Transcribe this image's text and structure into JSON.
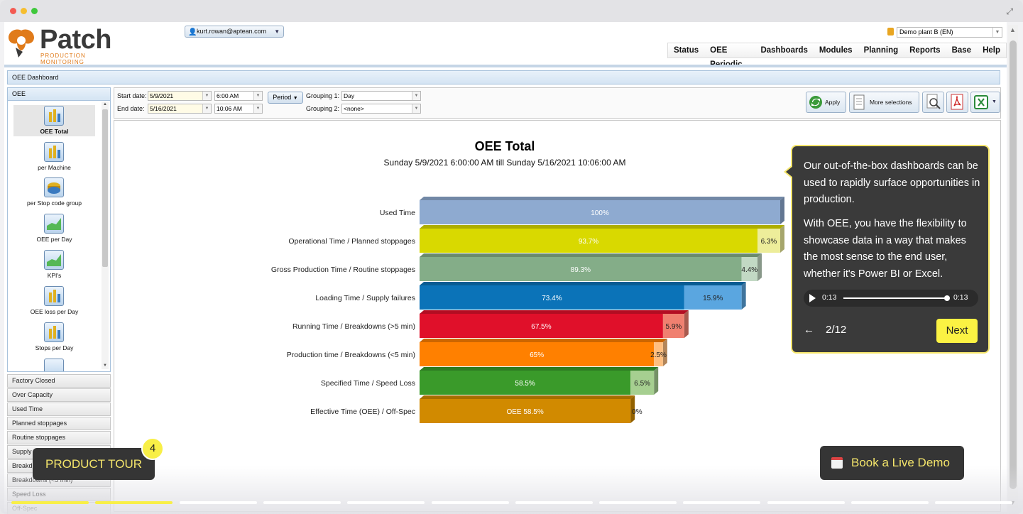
{
  "app": {
    "logo_text": "Patch",
    "logo_subtitle": "PRODUCTION MONITORING",
    "user": "kurt.rowan@aptean.com",
    "plant": "Demo plant B (EN)",
    "menu": [
      "Status",
      "OEE Periodic",
      "Dashboards",
      "Modules",
      "Planning",
      "Reports",
      "Base",
      "Help"
    ],
    "dashboard_tab": "OEE Dashboard"
  },
  "sidebar": {
    "header": "OEE",
    "items": [
      {
        "label": "OEE Total",
        "selected": true,
        "icon": "bar-chart-icon"
      },
      {
        "label": "per Machine",
        "icon": "bar-chart-icon"
      },
      {
        "label": "per Stop code group",
        "icon": "pie-chart-icon"
      },
      {
        "label": "OEE per Day",
        "icon": "area-chart-icon"
      },
      {
        "label": "KPI's",
        "icon": "area-chart-icon"
      },
      {
        "label": "OEE loss per Day",
        "icon": "bar-chart-icon"
      },
      {
        "label": "Stops per Day",
        "icon": "bar-chart-icon"
      }
    ],
    "sections": [
      "Factory Closed",
      "Over Capacity",
      "Used Time",
      "Planned stoppages",
      "Routine stoppages",
      "Supply",
      "Breakd",
      "Breakdowns (<5 min)",
      "Speed Loss",
      "Off-Spec"
    ]
  },
  "filters": {
    "start_label": "Start date:",
    "start_date": "5/9/2021",
    "start_time": "6:00 AM",
    "end_label": "End date:",
    "end_date": "5/16/2021",
    "end_time": "10:06 AM",
    "period_label": "Period",
    "grouping1_label": "Grouping 1:",
    "grouping1_value": "Day",
    "grouping2_label": "Grouping 2:",
    "grouping2_value": "<none>",
    "apply_label": "Apply",
    "more_label": "More selections"
  },
  "chart_data": {
    "type": "bar",
    "orientation": "horizontal",
    "stacked": true,
    "title": "OEE Total",
    "subtitle": "Sunday 5/9/2021 6:00:00 AM till Sunday 5/16/2021 10:06:00 AM",
    "xlim": [
      0,
      100
    ],
    "categories": [
      "Used Time",
      "Operational Time / Planned stoppages",
      "Gross Production Time / Routine stoppages",
      "Loading Time / Supply failures",
      "Running Time / Breakdowns (>5 min)",
      "Production time / Breakdowns (<5 min)",
      "Specified Time / Speed Loss",
      "Effective Time (OEE) / Off-Spec"
    ],
    "values": [
      100,
      93.7,
      89.3,
      73.4,
      67.5,
      65,
      58.5,
      58.5
    ],
    "losses": [
      0,
      6.3,
      4.4,
      15.9,
      5.9,
      2.5,
      6.5,
      0
    ],
    "value_labels": [
      "100%",
      "93.7%",
      "89.3%",
      "73.4%",
      "67.5%",
      "65%",
      "58.5%",
      "OEE 58.5%"
    ],
    "loss_labels": [
      "",
      "6.3%",
      "4.4%",
      "15.9%",
      "5.9%",
      "2.5%",
      "6.5%",
      "0%"
    ],
    "colors": [
      "#8eaad0",
      "#d9d900",
      "#84ad88",
      "#0b73b8",
      "#e0102a",
      "#ff8000",
      "#3a9a2a",
      "#d18a00"
    ],
    "loss_colors": [
      "#b5c8e2",
      "#eded9a",
      "#c2d9c4",
      "#5aa6e0",
      "#f08070",
      "#ffbf80",
      "#a6cf90",
      "#f0c070"
    ]
  },
  "tour": {
    "text1": "Our out-of-the-box dashboards can be used to rapidly surface opportunities in production.",
    "text2": "With OEE, you have the flexibility to showcase data in a way that makes the most sense to the end user, whether it's Power BI or Excel.",
    "time_current": "0:13",
    "time_total": "0:13",
    "step": "2/12",
    "next_label": "Next",
    "product_tour_label": "PRODUCT TOUR",
    "badge": "4",
    "demo_label": "Book a Live Demo",
    "progress_done": 2,
    "progress_total": 12
  }
}
